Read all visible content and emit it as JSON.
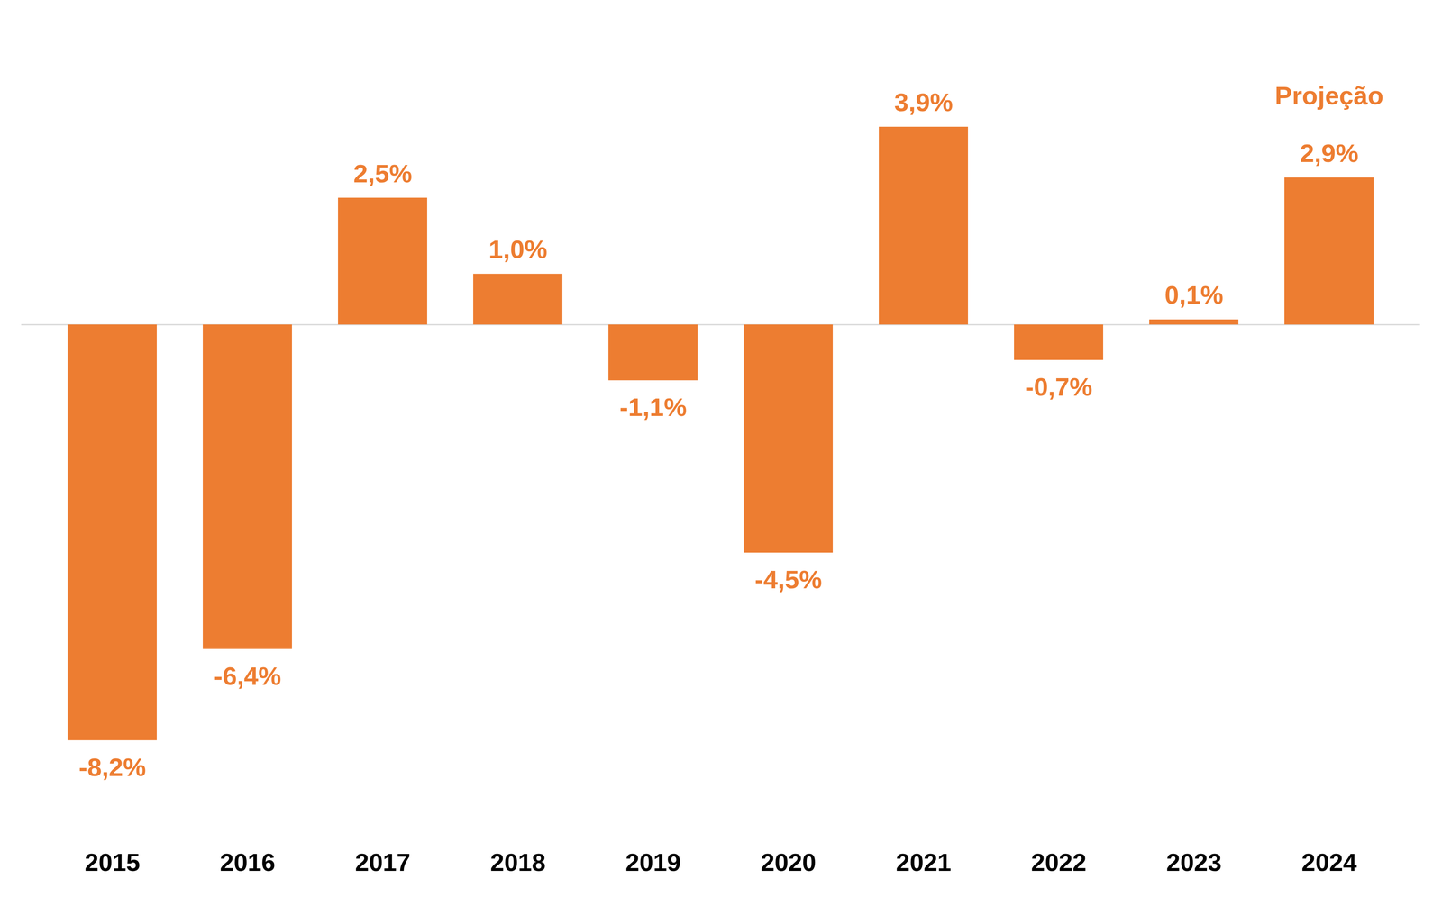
{
  "chart_data": {
    "type": "bar",
    "categories": [
      "2015",
      "2016",
      "2017",
      "2018",
      "2019",
      "2020",
      "2021",
      "2022",
      "2023",
      "2024"
    ],
    "values": [
      -8.2,
      -6.4,
      2.5,
      1.0,
      -1.1,
      -4.5,
      3.9,
      -0.7,
      0.1,
      2.9
    ],
    "value_labels": [
      "-8,2%",
      "-6,4%",
      "2,5%",
      "1,0%",
      "-1,1%",
      "-4,5%",
      "3,9%",
      "-0,7%",
      "0,1%",
      "2,9%"
    ],
    "color": "#ED7D31",
    "annotations": [
      {
        "category": "2024",
        "text": "Projeção"
      }
    ],
    "ylim": [
      -10,
      6.4
    ],
    "yticks": [
      0
    ],
    "data_labels": true,
    "tick_labels": "x"
  }
}
